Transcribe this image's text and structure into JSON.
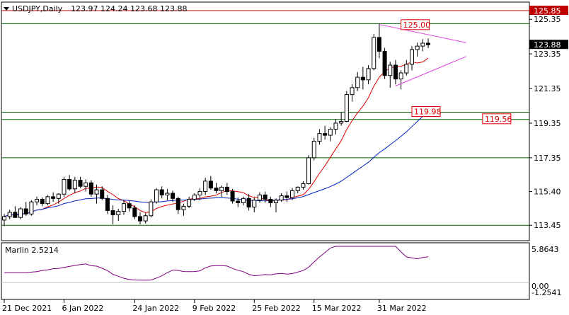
{
  "header": {
    "symbol_label": "USDJPY,Daily",
    "ohlc": "123.97 124.24 123.68 123.88"
  },
  "indicator": {
    "label": "Marlin 2.5214",
    "max_label": "5.8643",
    "min_label": "-1.2541",
    "zero_label": "0.00"
  },
  "colors": {
    "bg": "#ffffff",
    "grid_line": "#006400",
    "ma_fast": "#e00000",
    "ma_slow": "#0020c0",
    "triangle": "#e040e0",
    "oscillator": "#800080",
    "resistance": "#c00000",
    "price_tag_bg": "#000000",
    "red_label": "#e00000",
    "label_border": "#e00000"
  },
  "chart_data": {
    "type": "candlestick",
    "symbol": "USDJPY",
    "timeframe": "Daily",
    "y_ticks": [
      "125.35",
      "123.35",
      "121.35",
      "119.35",
      "117.35",
      "115.40",
      "113.45"
    ],
    "y_tick_values": [
      125.35,
      123.35,
      121.35,
      119.35,
      117.35,
      115.4,
      113.45
    ],
    "x_ticks": [
      "21 Dec 2021",
      "6 Jan 2022",
      "24 Jan 2022",
      "9 Feb 2022",
      "25 Feb 2022",
      "15 Mar 2022",
      "31 Mar 2022"
    ],
    "ylim": [
      112.6,
      126.3
    ],
    "current_price": "123.88",
    "resistance_price": "125.85",
    "levels": [
      {
        "label": "125.00",
        "value": 125.0
      },
      {
        "label": "119.98",
        "value": 119.98
      },
      {
        "label": "119.56",
        "value": 119.56
      }
    ],
    "horizontal_levels": [
      125.1,
      119.98,
      119.56,
      117.35,
      113.45
    ],
    "candles": [
      [
        113.75,
        114.1,
        113.4,
        113.95
      ],
      [
        113.95,
        114.35,
        113.8,
        114.2
      ],
      [
        114.2,
        114.55,
        113.95,
        113.9
      ],
      [
        113.9,
        114.5,
        113.8,
        114.4
      ],
      [
        114.4,
        114.8,
        114.0,
        114.1
      ],
      [
        114.1,
        114.9,
        114.0,
        114.8
      ],
      [
        114.8,
        115.1,
        114.6,
        114.95
      ],
      [
        114.95,
        115.05,
        114.55,
        114.7
      ],
      [
        114.7,
        115.2,
        114.6,
        115.1
      ],
      [
        115.1,
        115.35,
        114.8,
        115.0
      ],
      [
        115.0,
        115.3,
        114.7,
        115.25
      ],
      [
        115.25,
        116.25,
        115.1,
        116.1
      ],
      [
        116.1,
        116.35,
        115.45,
        115.55
      ],
      [
        115.55,
        116.25,
        115.3,
        116.05
      ],
      [
        116.05,
        116.25,
        115.6,
        115.7
      ],
      [
        115.7,
        116.1,
        115.4,
        115.9
      ],
      [
        115.9,
        116.05,
        115.1,
        115.25
      ],
      [
        115.25,
        115.8,
        114.7,
        115.5
      ],
      [
        115.5,
        115.7,
        114.9,
        115.0
      ],
      [
        115.0,
        115.2,
        114.1,
        114.3
      ],
      [
        114.3,
        114.6,
        113.5,
        114.05
      ],
      [
        114.05,
        114.4,
        113.7,
        114.25
      ],
      [
        114.25,
        114.9,
        114.05,
        114.7
      ],
      [
        114.7,
        114.85,
        114.25,
        114.45
      ],
      [
        114.45,
        114.6,
        113.8,
        113.95
      ],
      [
        113.95,
        114.2,
        113.5,
        113.7
      ],
      [
        113.7,
        114.15,
        113.55,
        114.0
      ],
      [
        114.0,
        114.95,
        113.9,
        114.8
      ],
      [
        114.8,
        115.6,
        114.7,
        115.5
      ],
      [
        115.5,
        115.7,
        115.0,
        115.2
      ],
      [
        115.2,
        115.55,
        114.9,
        115.3
      ],
      [
        115.3,
        115.45,
        114.8,
        115.0
      ],
      [
        115.0,
        115.1,
        114.1,
        114.35
      ],
      [
        114.35,
        114.7,
        114.0,
        114.55
      ],
      [
        114.55,
        115.1,
        114.45,
        114.95
      ],
      [
        114.95,
        115.3,
        114.85,
        115.2
      ],
      [
        115.2,
        115.6,
        114.9,
        115.4
      ],
      [
        115.4,
        116.2,
        115.2,
        116.0
      ],
      [
        116.0,
        116.3,
        115.5,
        115.6
      ],
      [
        115.6,
        115.9,
        115.3,
        115.45
      ],
      [
        115.45,
        115.75,
        115.1,
        115.65
      ],
      [
        115.65,
        115.9,
        115.2,
        115.4
      ],
      [
        115.4,
        115.55,
        114.7,
        114.85
      ],
      [
        114.85,
        115.05,
        114.5,
        114.75
      ],
      [
        114.75,
        115.1,
        114.6,
        115.0
      ],
      [
        115.0,
        115.25,
        114.3,
        114.5
      ],
      [
        114.5,
        115.05,
        114.2,
        114.9
      ],
      [
        114.9,
        115.35,
        114.75,
        115.2
      ],
      [
        115.2,
        115.4,
        114.75,
        114.95
      ],
      [
        114.95,
        115.1,
        114.5,
        114.75
      ],
      [
        114.75,
        115.0,
        114.2,
        114.9
      ],
      [
        114.9,
        115.3,
        114.8,
        115.15
      ],
      [
        115.15,
        115.4,
        114.8,
        115.05
      ],
      [
        115.05,
        115.6,
        114.9,
        115.45
      ],
      [
        115.45,
        115.7,
        115.3,
        115.65
      ],
      [
        115.65,
        116.0,
        115.5,
        115.85
      ],
      [
        115.85,
        117.5,
        115.8,
        117.35
      ],
      [
        117.35,
        118.5,
        117.2,
        118.3
      ],
      [
        118.3,
        119.0,
        118.1,
        118.75
      ],
      [
        118.75,
        119.2,
        118.4,
        118.65
      ],
      [
        118.65,
        119.1,
        118.3,
        119.0
      ],
      [
        119.0,
        119.6,
        118.7,
        119.35
      ],
      [
        119.35,
        120.0,
        119.2,
        119.45
      ],
      [
        119.45,
        121.2,
        119.4,
        121.0
      ],
      [
        121.0,
        121.6,
        120.6,
        121.4
      ],
      [
        121.4,
        122.3,
        121.2,
        122.0
      ],
      [
        122.0,
        122.6,
        121.3,
        121.85
      ],
      [
        121.85,
        122.7,
        121.6,
        122.5
      ],
      [
        122.5,
        124.5,
        122.4,
        124.3
      ],
      [
        124.3,
        125.1,
        123.1,
        123.5
      ],
      [
        123.5,
        123.7,
        121.9,
        122.1
      ],
      [
        122.1,
        122.9,
        121.4,
        122.7
      ],
      [
        122.7,
        123.0,
        121.6,
        121.9
      ],
      [
        121.9,
        122.4,
        121.3,
        122.25
      ],
      [
        122.25,
        123.0,
        122.1,
        122.75
      ],
      [
        122.75,
        123.8,
        122.4,
        123.6
      ],
      [
        123.6,
        124.0,
        123.2,
        123.8
      ],
      [
        123.8,
        124.2,
        123.5,
        123.97
      ],
      [
        123.97,
        124.24,
        123.68,
        123.88
      ]
    ]
  }
}
